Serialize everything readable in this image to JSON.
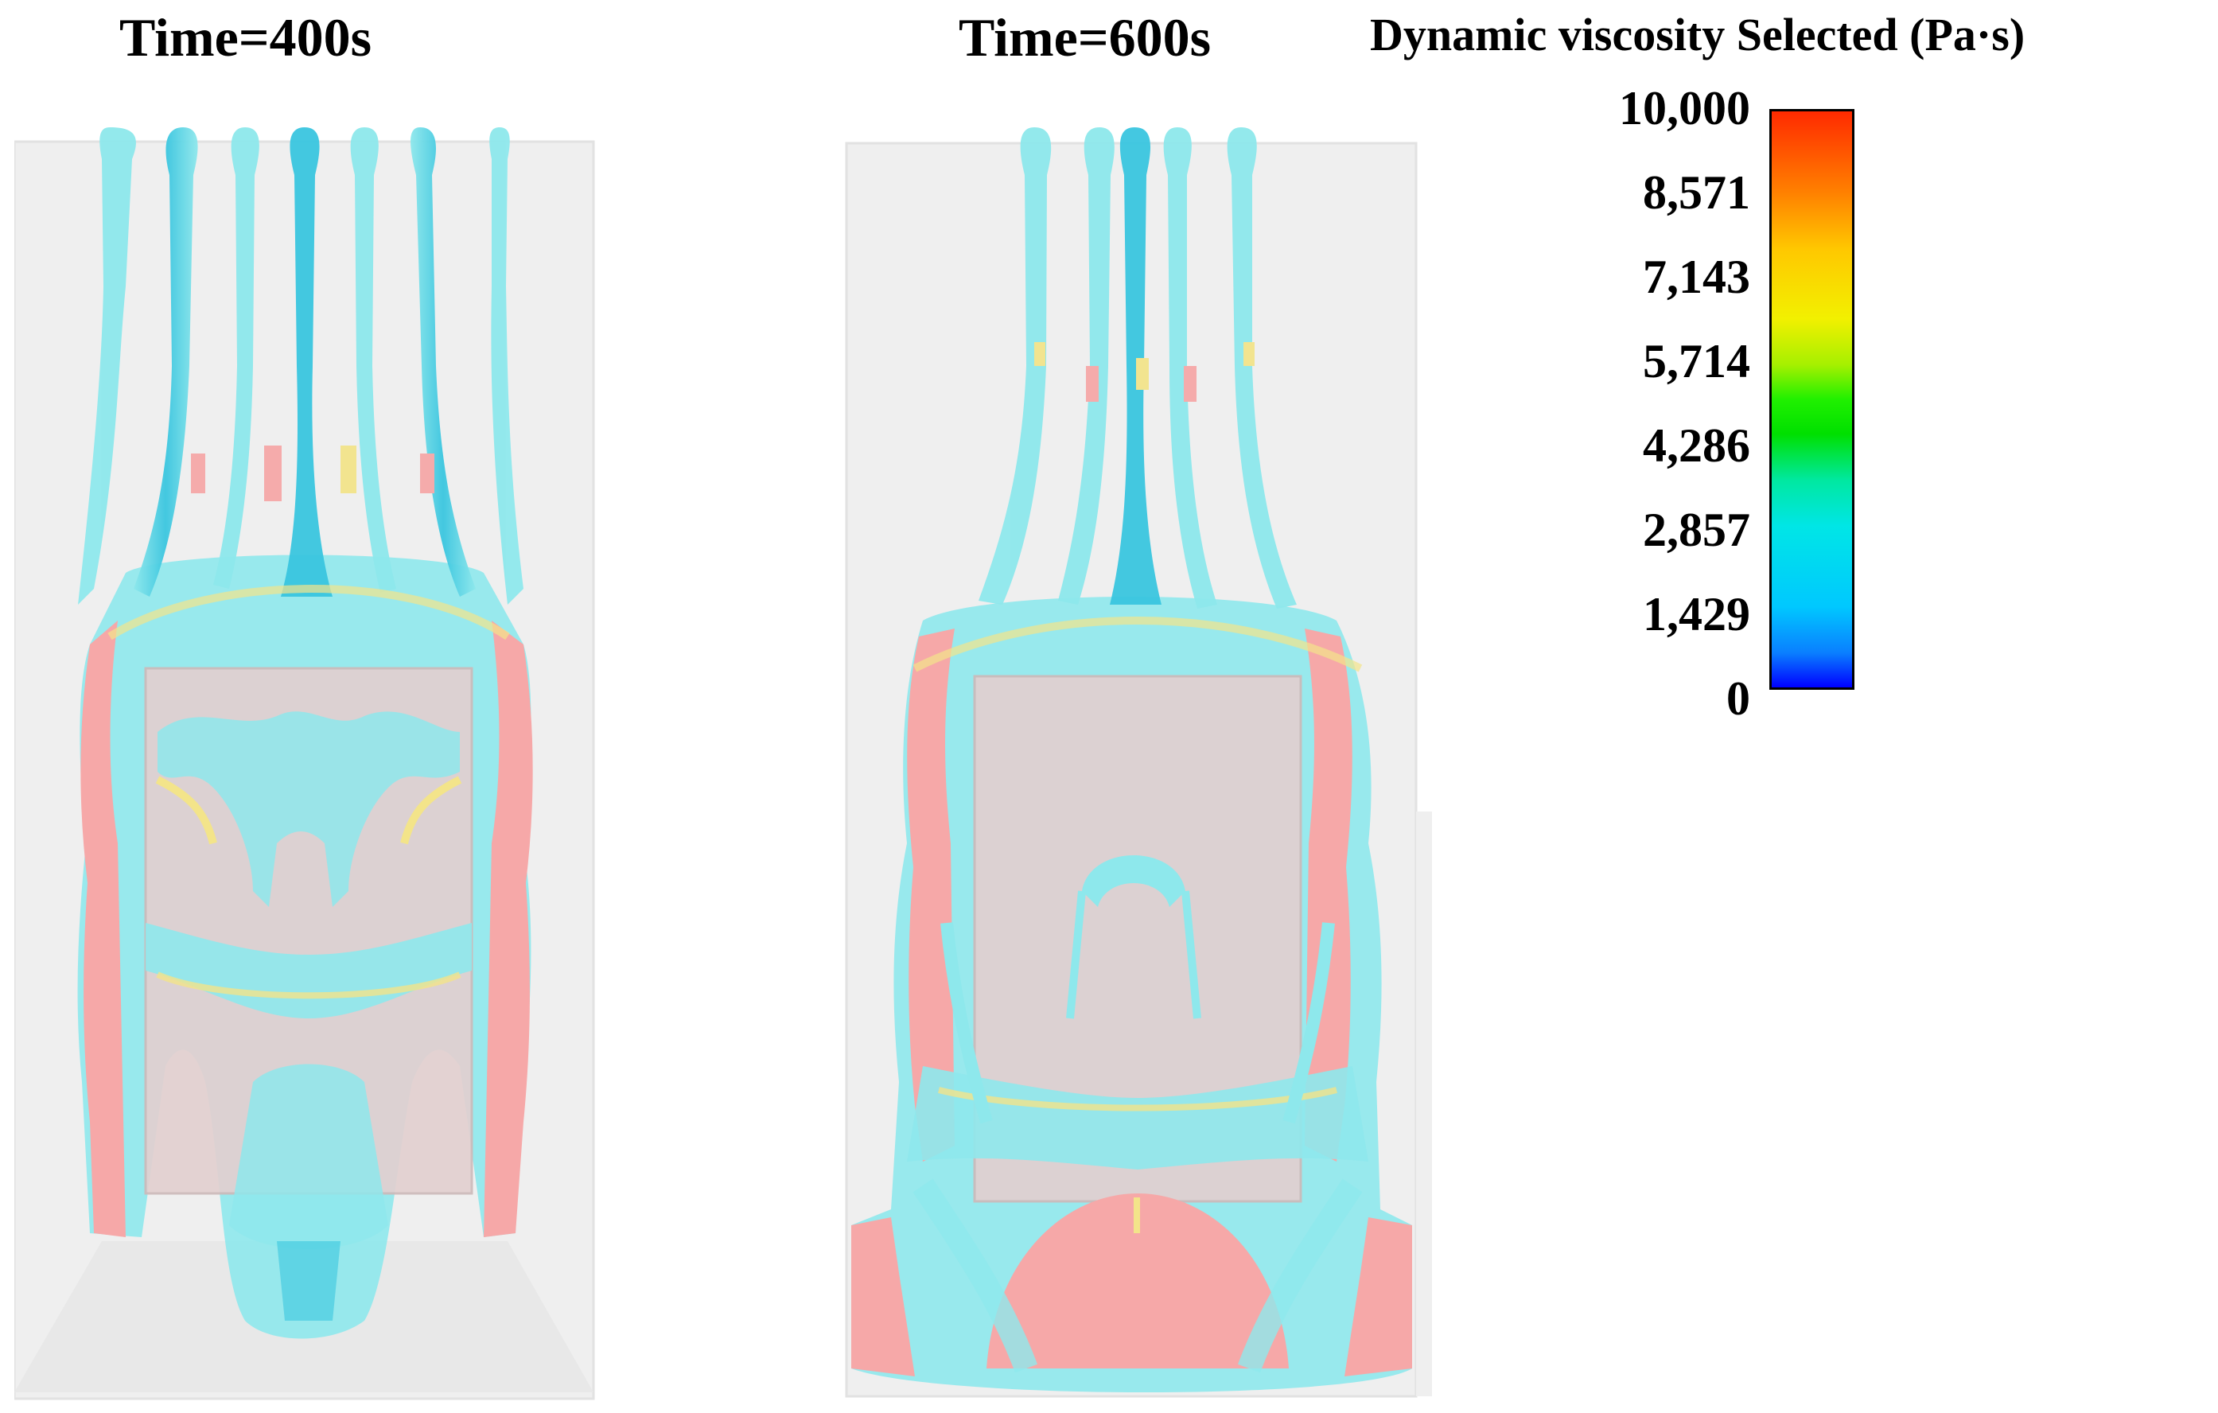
{
  "panels": [
    {
      "title": "Time=400s"
    },
    {
      "title": "Time=600s"
    }
  ],
  "legend": {
    "title": "Dynamic viscosity Selected (Pa·s)",
    "ticks": [
      "10,000",
      "8,571",
      "7,143",
      "5,714",
      "4,286",
      "2,857",
      "1,429",
      "0"
    ],
    "colors": [
      "#0000ff",
      "#00c8ff",
      "#00e6e6",
      "#00e000",
      "#f2f000",
      "#ff8000",
      "#ff2a00"
    ]
  },
  "scene_colors": {
    "container": "#efefef",
    "core": "#e2d0d0",
    "cyan": "#8ee8ec",
    "blue": "#3ac6e0",
    "red": "#f6a8a8",
    "yellow": "#f3e48a"
  }
}
